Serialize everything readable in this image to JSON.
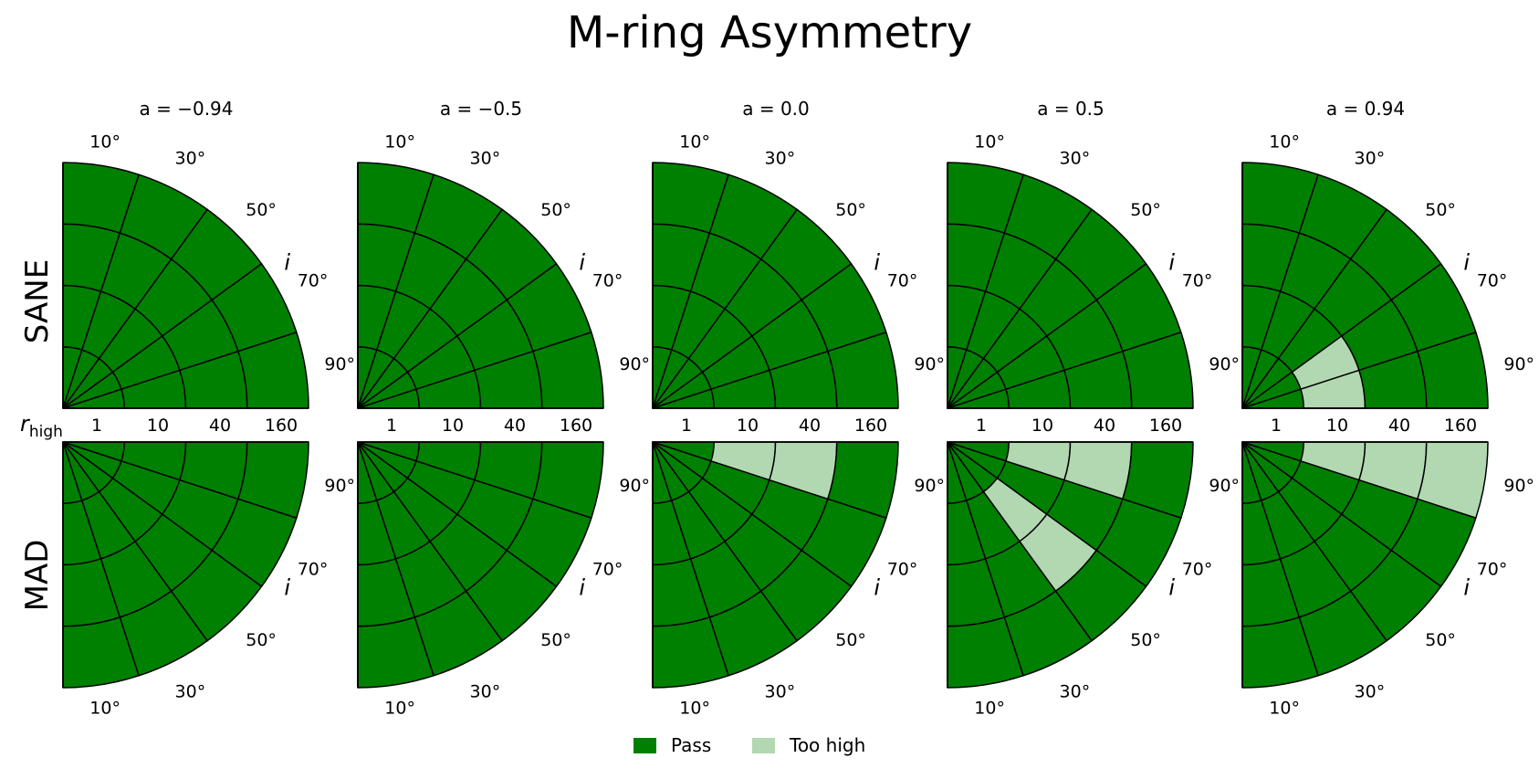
{
  "title": "M-ring Asymmetry",
  "chart_data": {
    "type": "polar-grid",
    "title": "M-ring Asymmetry",
    "row_labels": [
      "SANE",
      "MAD"
    ],
    "column_titles": [
      "a = −0.94",
      "a = −0.5",
      "a = 0.0",
      "a = 0.5",
      "a = 0.94"
    ],
    "spins": [
      -0.94,
      -0.5,
      0.0,
      0.5,
      0.94
    ],
    "radial_axis_label": "r_high",
    "r_high": [
      1,
      10,
      40,
      160
    ],
    "angular_axis_label": "i",
    "inclination_deg": [
      10,
      30,
      50,
      70,
      90
    ],
    "inclination_tick_labels": [
      "10°",
      "30°",
      "50°",
      "70°",
      "90°"
    ],
    "states": {
      "P": "Pass",
      "H": "Too high"
    },
    "colors": {
      "Pass": "#008000",
      "Too high": "#b2d8b2"
    },
    "legend": {
      "position": "bottom-center",
      "entries": [
        "Pass",
        "Too high"
      ]
    },
    "cell_layout": "result[row][spin][inclination index][r_high index]",
    "result": [
      [
        [
          [
            "P",
            "P",
            "P",
            "P"
          ],
          [
            "P",
            "P",
            "P",
            "P"
          ],
          [
            "P",
            "P",
            "P",
            "P"
          ],
          [
            "P",
            "P",
            "P",
            "P"
          ],
          [
            "P",
            "P",
            "P",
            "P"
          ]
        ],
        [
          [
            "P",
            "P",
            "P",
            "P"
          ],
          [
            "P",
            "P",
            "P",
            "P"
          ],
          [
            "P",
            "P",
            "P",
            "P"
          ],
          [
            "P",
            "P",
            "P",
            "P"
          ],
          [
            "P",
            "P",
            "P",
            "P"
          ]
        ],
        [
          [
            "P",
            "P",
            "P",
            "P"
          ],
          [
            "P",
            "P",
            "P",
            "P"
          ],
          [
            "P",
            "P",
            "P",
            "P"
          ],
          [
            "P",
            "P",
            "P",
            "P"
          ],
          [
            "P",
            "P",
            "P",
            "P"
          ]
        ],
        [
          [
            "P",
            "P",
            "P",
            "P"
          ],
          [
            "P",
            "P",
            "P",
            "P"
          ],
          [
            "P",
            "P",
            "P",
            "P"
          ],
          [
            "P",
            "P",
            "P",
            "P"
          ],
          [
            "P",
            "P",
            "P",
            "P"
          ]
        ],
        [
          [
            "P",
            "P",
            "P",
            "P"
          ],
          [
            "P",
            "P",
            "P",
            "P"
          ],
          [
            "P",
            "P",
            "P",
            "P"
          ],
          [
            "P",
            "H",
            "P",
            "P"
          ],
          [
            "P",
            "H",
            "P",
            "P"
          ]
        ]
      ],
      [
        [
          [
            "P",
            "P",
            "P",
            "P"
          ],
          [
            "P",
            "P",
            "P",
            "P"
          ],
          [
            "P",
            "P",
            "P",
            "P"
          ],
          [
            "P",
            "P",
            "P",
            "P"
          ],
          [
            "P",
            "P",
            "P",
            "P"
          ]
        ],
        [
          [
            "P",
            "P",
            "P",
            "P"
          ],
          [
            "P",
            "P",
            "P",
            "P"
          ],
          [
            "P",
            "P",
            "P",
            "P"
          ],
          [
            "P",
            "P",
            "P",
            "P"
          ],
          [
            "P",
            "P",
            "P",
            "P"
          ]
        ],
        [
          [
            "P",
            "P",
            "P",
            "P"
          ],
          [
            "P",
            "P",
            "P",
            "P"
          ],
          [
            "P",
            "P",
            "P",
            "P"
          ],
          [
            "P",
            "P",
            "P",
            "P"
          ],
          [
            "P",
            "H",
            "H",
            "P"
          ]
        ],
        [
          [
            "P",
            "P",
            "P",
            "P"
          ],
          [
            "P",
            "P",
            "P",
            "P"
          ],
          [
            "P",
            "H",
            "H",
            "P"
          ],
          [
            "P",
            "P",
            "P",
            "P"
          ],
          [
            "P",
            "H",
            "H",
            "P"
          ]
        ],
        [
          [
            "P",
            "P",
            "P",
            "P"
          ],
          [
            "P",
            "P",
            "P",
            "P"
          ],
          [
            "P",
            "P",
            "P",
            "P"
          ],
          [
            "P",
            "P",
            "P",
            "P"
          ],
          [
            "P",
            "H",
            "H",
            "H"
          ]
        ]
      ]
    ]
  }
}
